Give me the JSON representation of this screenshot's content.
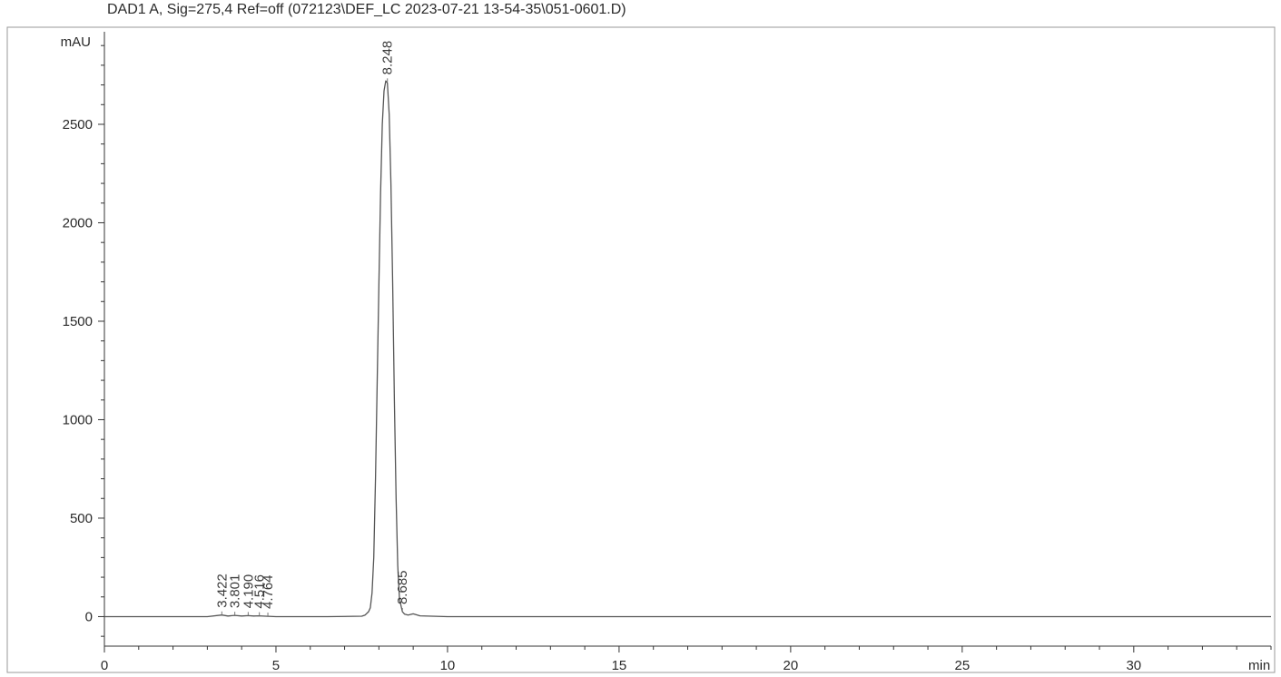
{
  "chart_data": {
    "type": "line",
    "title": "DAD1 A, Sig=275,4 Ref=off (072123\\DEF_LC 2023-07-21 13-54-35\\051-0601.D)",
    "ylabel": "mAU",
    "xlabel": "min",
    "xlim": [
      0,
      34
    ],
    "ylim": [
      -150,
      2970
    ],
    "x_ticks": [
      0,
      5,
      10,
      15,
      20,
      25,
      30
    ],
    "x_tick_labels": [
      "0",
      "5",
      "10",
      "15",
      "20",
      "25",
      "30"
    ],
    "y_ticks": [
      0,
      500,
      1000,
      1500,
      2000,
      2500
    ],
    "y_tick_labels": [
      "0",
      "500",
      "1000",
      "1500",
      "2000",
      "2500"
    ],
    "grid": false,
    "series": [
      {
        "x": [
          0,
          3.0,
          3.42,
          3.6,
          3.8,
          4.0,
          4.19,
          4.35,
          4.5,
          4.7,
          5.0,
          6.5,
          7.5,
          7.6,
          7.7,
          7.75,
          7.8,
          7.85,
          7.9,
          7.95,
          8.0,
          8.05,
          8.1,
          8.15,
          8.2,
          8.248,
          8.3,
          8.35,
          8.4,
          8.45,
          8.5,
          8.55,
          8.6,
          8.685,
          8.75,
          8.85,
          9.0,
          9.2,
          10,
          15,
          20,
          25,
          30,
          34
        ],
        "y": [
          0,
          0,
          8,
          3,
          6,
          3,
          5,
          3,
          4,
          2,
          0,
          0,
          2,
          8,
          25,
          45,
          120,
          300,
          700,
          1200,
          1700,
          2150,
          2500,
          2670,
          2720,
          2710,
          2550,
          2200,
          1700,
          1100,
          600,
          260,
          90,
          25,
          12,
          8,
          14,
          4,
          0,
          0,
          0,
          0,
          0,
          0
        ]
      }
    ],
    "peak_labels": [
      "3.422",
      "3.801",
      "4.190",
      "4.516",
      "4.764",
      "8.248",
      "8.685"
    ],
    "peak_label_times": [
      3.422,
      3.801,
      4.19,
      4.516,
      4.764,
      8.248,
      8.685
    ],
    "peak_label_values": [
      8,
      6,
      5,
      4,
      2,
      2715,
      25
    ],
    "line_color": "#555555",
    "axis_color": "#333333"
  }
}
